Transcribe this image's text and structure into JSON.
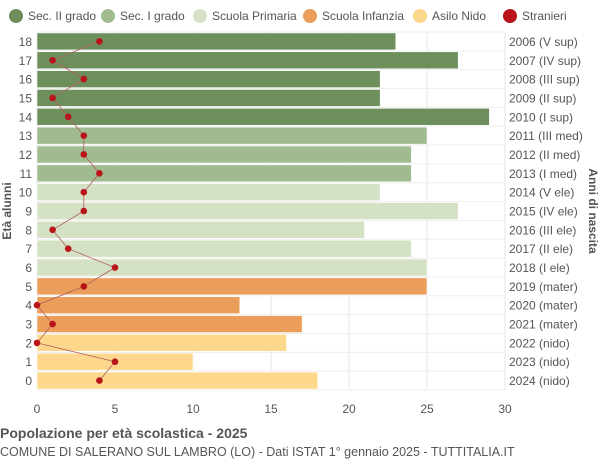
{
  "chart_data": {
    "type": "bar",
    "orientation": "horizontal",
    "title": "Popolazione per età scolastica - 2025",
    "subtitle": "COMUNE DI SALERANO SUL LAMBRO (LO) - Dati ISTAT 1° gennaio 2025 - TUTTITALIA.IT",
    "ylabel": "Età alunni",
    "ylabel_right": "Anni di nascita",
    "xlim": [
      0,
      30
    ],
    "xticks": [
      0,
      5,
      10,
      15,
      20,
      25,
      30
    ],
    "grid": true,
    "legend_position": "top",
    "legend": [
      {
        "name": "Sec. II grado",
        "color": "#6d8f5c"
      },
      {
        "name": "Sec. I grado",
        "color": "#a0bb8f"
      },
      {
        "name": "Scuola Primaria",
        "color": "#d5e1c4"
      },
      {
        "name": "Scuola Infanzia",
        "color": "#eb9e5a"
      },
      {
        "name": "Asilo Nido",
        "color": "#fdd88c"
      },
      {
        "name": "Stranieri",
        "color": "#b8141a"
      }
    ],
    "categories": [
      "18",
      "17",
      "16",
      "15",
      "14",
      "13",
      "12",
      "11",
      "10",
      "9",
      "8",
      "7",
      "6",
      "5",
      "4",
      "3",
      "2",
      "1",
      "0"
    ],
    "birth_years": [
      "2006 (V sup)",
      "2007 (IV sup)",
      "2008 (III sup)",
      "2009 (II sup)",
      "2010 (I sup)",
      "2011 (III med)",
      "2012 (II med)",
      "2013 (I med)",
      "2014 (V ele)",
      "2015 (IV ele)",
      "2016 (III ele)",
      "2017 (II ele)",
      "2018 (I ele)",
      "2019 (mater)",
      "2020 (mater)",
      "2021 (mater)",
      "2022 (nido)",
      "2023 (nido)",
      "2024 (nido)"
    ],
    "school_level": [
      0,
      0,
      0,
      0,
      0,
      1,
      1,
      1,
      2,
      2,
      2,
      2,
      2,
      3,
      3,
      3,
      4,
      4,
      4
    ],
    "values": [
      23,
      27,
      22,
      22,
      29,
      25,
      24,
      24,
      22,
      27,
      21,
      24,
      25,
      25,
      13,
      17,
      16,
      10,
      18
    ],
    "stranieri": [
      4,
      1,
      3,
      1,
      2,
      3,
      3,
      4,
      3,
      3,
      1,
      2,
      5,
      3,
      0,
      1,
      0,
      5,
      4
    ]
  }
}
